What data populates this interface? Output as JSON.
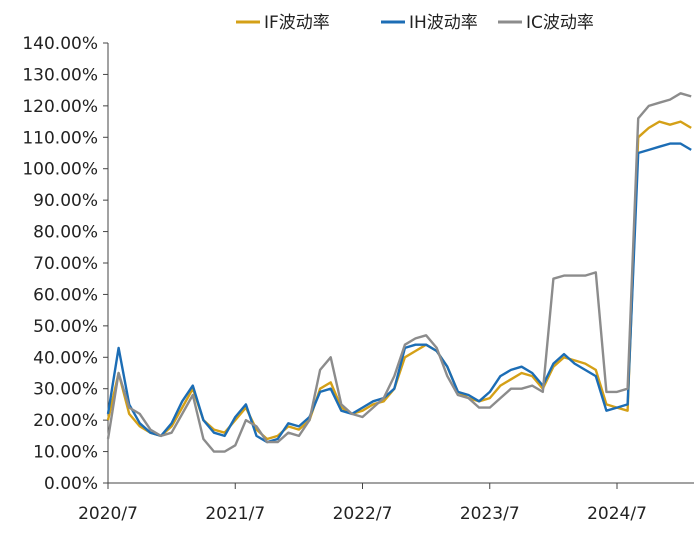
{
  "chart_data": {
    "type": "line",
    "ylim": [
      0,
      140
    ],
    "yticks": [
      {
        "v": 140,
        "label": "140.00%"
      },
      {
        "v": 130,
        "label": "130.00%"
      },
      {
        "v": 120,
        "label": "120.00%"
      },
      {
        "v": 110,
        "label": "110.00%"
      },
      {
        "v": 100,
        "label": "100.00%"
      },
      {
        "v": 90,
        "label": "90.00%"
      },
      {
        "v": 80,
        "label": "80.00%"
      },
      {
        "v": 70,
        "label": "70.00%"
      },
      {
        "v": 60,
        "label": "60.00%"
      },
      {
        "v": 50,
        "label": "50.00%"
      },
      {
        "v": 40,
        "label": "40.00%"
      },
      {
        "v": 30,
        "label": "30.00%"
      },
      {
        "v": 20,
        "label": "20.00%"
      },
      {
        "v": 10,
        "label": "10.00%"
      },
      {
        "v": 0,
        "label": "0.00%"
      }
    ],
    "xlim": [
      "2020-07",
      "2025-02"
    ],
    "xticks": [
      {
        "x": "2020-07",
        "label": "2020/7"
      },
      {
        "x": "2021-07",
        "label": "2021/7"
      },
      {
        "x": "2022-07",
        "label": "2022/7"
      },
      {
        "x": "2023-07",
        "label": "2023/7"
      },
      {
        "x": "2024-07",
        "label": "2024/7"
      }
    ],
    "grid": false,
    "legend_position": "top",
    "series": [
      {
        "name": "IF波动率",
        "color": "#D4A017",
        "points": [
          [
            "2020-07",
            20
          ],
          [
            "2020-08",
            35
          ],
          [
            "2020-09",
            22
          ],
          [
            "2020-10",
            18
          ],
          [
            "2020-11",
            16
          ],
          [
            "2020-12",
            15
          ],
          [
            "2021-01",
            18
          ],
          [
            "2021-02",
            24
          ],
          [
            "2021-03",
            30
          ],
          [
            "2021-04",
            20
          ],
          [
            "2021-05",
            17
          ],
          [
            "2021-06",
            16
          ],
          [
            "2021-07",
            20
          ],
          [
            "2021-08",
            24
          ],
          [
            "2021-09",
            17
          ],
          [
            "2021-10",
            14
          ],
          [
            "2021-11",
            15
          ],
          [
            "2021-12",
            18
          ],
          [
            "2022-01",
            17
          ],
          [
            "2022-02",
            20
          ],
          [
            "2022-03",
            30
          ],
          [
            "2022-04",
            32
          ],
          [
            "2022-05",
            24
          ],
          [
            "2022-06",
            22
          ],
          [
            "2022-07",
            23
          ],
          [
            "2022-08",
            25
          ],
          [
            "2022-09",
            26
          ],
          [
            "2022-10",
            30
          ],
          [
            "2022-11",
            40
          ],
          [
            "2022-12",
            42
          ],
          [
            "2023-01",
            44
          ],
          [
            "2023-02",
            42
          ],
          [
            "2023-03",
            37
          ],
          [
            "2023-04",
            29
          ],
          [
            "2023-05",
            27
          ],
          [
            "2023-06",
            26
          ],
          [
            "2023-07",
            27
          ],
          [
            "2023-08",
            31
          ],
          [
            "2023-09",
            33
          ],
          [
            "2023-10",
            35
          ],
          [
            "2023-11",
            34
          ],
          [
            "2023-12",
            30
          ],
          [
            "2024-01",
            37
          ],
          [
            "2024-02",
            40
          ],
          [
            "2024-03",
            39
          ],
          [
            "2024-04",
            38
          ],
          [
            "2024-05",
            36
          ],
          [
            "2024-06",
            25
          ],
          [
            "2024-07",
            24
          ],
          [
            "2024-08",
            23
          ],
          [
            "2024-09",
            110
          ],
          [
            "2024-10",
            113
          ],
          [
            "2024-11",
            115
          ],
          [
            "2024-12",
            114
          ],
          [
            "2025-01",
            115
          ],
          [
            "2025-02",
            113
          ]
        ]
      },
      {
        "name": "IH波动率",
        "color": "#1C6DB5",
        "points": [
          [
            "2020-07",
            22
          ],
          [
            "2020-08",
            43
          ],
          [
            "2020-09",
            25
          ],
          [
            "2020-10",
            19
          ],
          [
            "2020-11",
            16
          ],
          [
            "2020-12",
            15
          ],
          [
            "2021-01",
            19
          ],
          [
            "2021-02",
            26
          ],
          [
            "2021-03",
            31
          ],
          [
            "2021-04",
            20
          ],
          [
            "2021-05",
            16
          ],
          [
            "2021-06",
            15
          ],
          [
            "2021-07",
            21
          ],
          [
            "2021-08",
            25
          ],
          [
            "2021-09",
            15
          ],
          [
            "2021-10",
            13
          ],
          [
            "2021-11",
            14
          ],
          [
            "2021-12",
            19
          ],
          [
            "2022-01",
            18
          ],
          [
            "2022-02",
            21
          ],
          [
            "2022-03",
            29
          ],
          [
            "2022-04",
            30
          ],
          [
            "2022-05",
            23
          ],
          [
            "2022-06",
            22
          ],
          [
            "2022-07",
            24
          ],
          [
            "2022-08",
            26
          ],
          [
            "2022-09",
            27
          ],
          [
            "2022-10",
            30
          ],
          [
            "2022-11",
            43
          ],
          [
            "2022-12",
            44
          ],
          [
            "2023-01",
            44
          ],
          [
            "2023-02",
            42
          ],
          [
            "2023-03",
            37
          ],
          [
            "2023-04",
            29
          ],
          [
            "2023-05",
            28
          ],
          [
            "2023-06",
            26
          ],
          [
            "2023-07",
            29
          ],
          [
            "2023-08",
            34
          ],
          [
            "2023-09",
            36
          ],
          [
            "2023-10",
            37
          ],
          [
            "2023-11",
            35
          ],
          [
            "2023-12",
            31
          ],
          [
            "2024-01",
            38
          ],
          [
            "2024-02",
            41
          ],
          [
            "2024-03",
            38
          ],
          [
            "2024-04",
            36
          ],
          [
            "2024-05",
            34
          ],
          [
            "2024-06",
            23
          ],
          [
            "2024-07",
            24
          ],
          [
            "2024-08",
            25
          ],
          [
            "2024-09",
            105
          ],
          [
            "2024-10",
            106
          ],
          [
            "2024-11",
            107
          ],
          [
            "2024-12",
            108
          ],
          [
            "2025-01",
            108
          ],
          [
            "2025-02",
            106
          ]
        ]
      },
      {
        "name": "IC波动率",
        "color": "#8C8C8C",
        "points": [
          [
            "2020-07",
            14
          ],
          [
            "2020-08",
            35
          ],
          [
            "2020-09",
            24
          ],
          [
            "2020-10",
            22
          ],
          [
            "2020-11",
            17
          ],
          [
            "2020-12",
            15
          ],
          [
            "2021-01",
            16
          ],
          [
            "2021-02",
            22
          ],
          [
            "2021-03",
            28
          ],
          [
            "2021-04",
            14
          ],
          [
            "2021-05",
            10
          ],
          [
            "2021-06",
            10
          ],
          [
            "2021-07",
            12
          ],
          [
            "2021-08",
            20
          ],
          [
            "2021-09",
            18
          ],
          [
            "2021-10",
            13
          ],
          [
            "2021-11",
            13
          ],
          [
            "2021-12",
            16
          ],
          [
            "2022-01",
            15
          ],
          [
            "2022-02",
            20
          ],
          [
            "2022-03",
            36
          ],
          [
            "2022-04",
            40
          ],
          [
            "2022-05",
            25
          ],
          [
            "2022-06",
            22
          ],
          [
            "2022-07",
            21
          ],
          [
            "2022-08",
            24
          ],
          [
            "2022-09",
            27
          ],
          [
            "2022-10",
            34
          ],
          [
            "2022-11",
            44
          ],
          [
            "2022-12",
            46
          ],
          [
            "2023-01",
            47
          ],
          [
            "2023-02",
            43
          ],
          [
            "2023-03",
            34
          ],
          [
            "2023-04",
            28
          ],
          [
            "2023-05",
            27
          ],
          [
            "2023-06",
            24
          ],
          [
            "2023-07",
            24
          ],
          [
            "2023-08",
            27
          ],
          [
            "2023-09",
            30
          ],
          [
            "2023-10",
            30
          ],
          [
            "2023-11",
            31
          ],
          [
            "2023-12",
            29
          ],
          [
            "2024-01",
            65
          ],
          [
            "2024-02",
            66
          ],
          [
            "2024-03",
            66
          ],
          [
            "2024-04",
            66
          ],
          [
            "2024-05",
            67
          ],
          [
            "2024-06",
            29
          ],
          [
            "2024-07",
            29
          ],
          [
            "2024-08",
            30
          ],
          [
            "2024-09",
            116
          ],
          [
            "2024-10",
            120
          ],
          [
            "2024-11",
            121
          ],
          [
            "2024-12",
            122
          ],
          [
            "2025-01",
            124
          ],
          [
            "2025-02",
            123
          ]
        ]
      }
    ]
  }
}
